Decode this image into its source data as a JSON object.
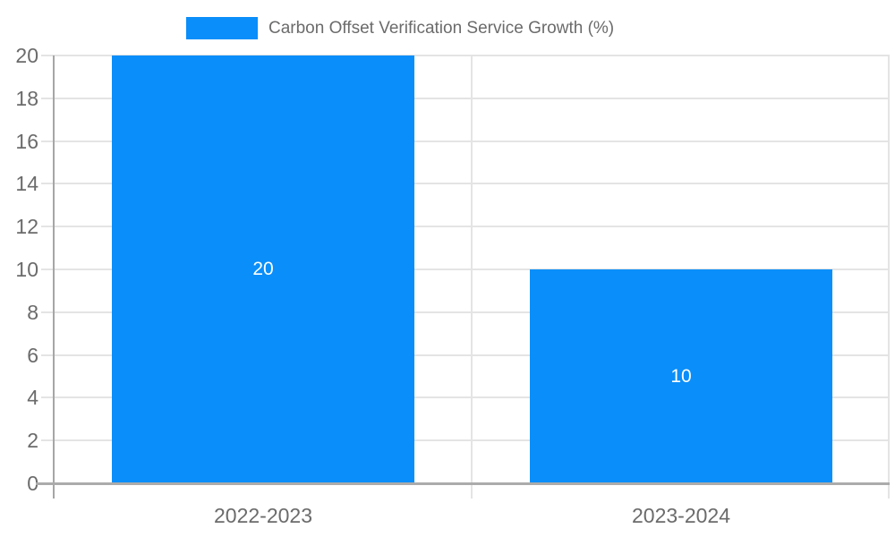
{
  "chart_data": {
    "type": "bar",
    "title": "Carbon Offset Verification Service Growth (%)",
    "legend_position": "top",
    "categories": [
      "2022-2023",
      "2023-2024"
    ],
    "series": [
      {
        "name": "Carbon Offset Verification Service Growth (%)",
        "values": [
          20,
          10
        ],
        "bar_labels": [
          "20",
          "10"
        ]
      }
    ],
    "xlabel": "",
    "ylabel": "",
    "ylim": [
      0,
      20
    ],
    "ytick_step": 2,
    "ytick_labels": [
      "0",
      "2",
      "4",
      "6",
      "8",
      "10",
      "12",
      "14",
      "16",
      "18",
      "20"
    ],
    "grid": true,
    "colors": {
      "bar": "#0a8ef9",
      "text": "#6b6b6b",
      "bar_label_text": "#ffffff",
      "gridline": "#e4e4e4",
      "y_axis_line": "#a6a6a6",
      "x_axis_line": "#ababab",
      "background": "#ffffff"
    }
  }
}
